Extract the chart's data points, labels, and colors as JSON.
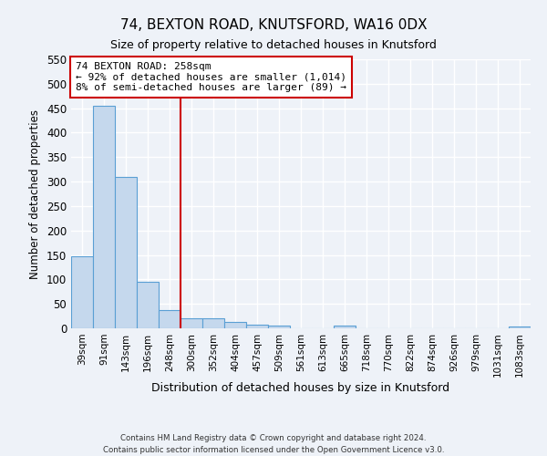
{
  "title": "74, BEXTON ROAD, KNUTSFORD, WA16 0DX",
  "subtitle": "Size of property relative to detached houses in Knutsford",
  "bar_labels": [
    "39sqm",
    "91sqm",
    "143sqm",
    "196sqm",
    "248sqm",
    "300sqm",
    "352sqm",
    "404sqm",
    "457sqm",
    "509sqm",
    "561sqm",
    "613sqm",
    "665sqm",
    "718sqm",
    "770sqm",
    "822sqm",
    "874sqm",
    "926sqm",
    "979sqm",
    "1031sqm",
    "1083sqm"
  ],
  "bar_values": [
    148,
    455,
    310,
    95,
    38,
    20,
    21,
    13,
    8,
    5,
    0,
    0,
    6,
    0,
    0,
    0,
    0,
    0,
    0,
    0,
    4
  ],
  "bar_color": "#c5d8ed",
  "bar_edge_color": "#5a9fd4",
  "ylim": [
    0,
    550
  ],
  "yticks": [
    0,
    50,
    100,
    150,
    200,
    250,
    300,
    350,
    400,
    450,
    500,
    550
  ],
  "ylabel": "Number of detached properties",
  "xlabel": "Distribution of detached houses by size in Knutsford",
  "property_line_x": 4.5,
  "property_line_color": "#cc0000",
  "annotation_title": "74 BEXTON ROAD: 258sqm",
  "annotation_line1": "← 92% of detached houses are smaller (1,014)",
  "annotation_line2": "8% of semi-detached houses are larger (89) →",
  "annotation_box_color": "#cc0000",
  "footer_line1": "Contains HM Land Registry data © Crown copyright and database right 2024.",
  "footer_line2": "Contains public sector information licensed under the Open Government Licence v3.0.",
  "bg_color": "#eef2f8",
  "grid_color": "#ffffff"
}
